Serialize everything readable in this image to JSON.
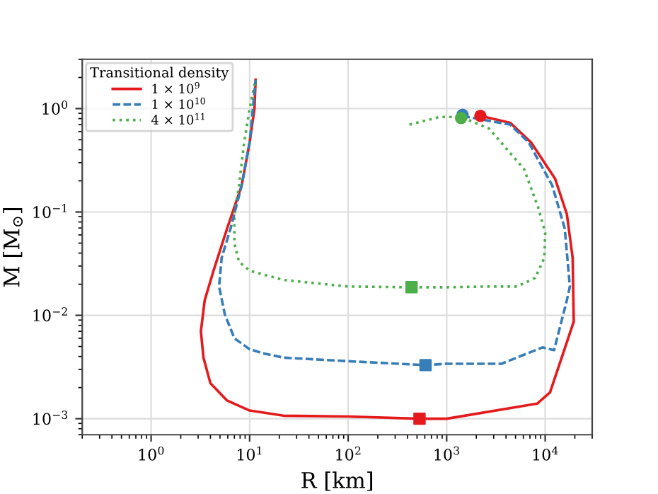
{
  "chart_data": {
    "type": "line",
    "xlabel": "R [km]",
    "ylabel": "M [M$_{⊙}$]",
    "legend_title": "Transitional density",
    "log": "xy",
    "grid": true,
    "legend": "top left",
    "xlim": [
      0.2,
      30000
    ],
    "ylim": [
      0.0007,
      3
    ],
    "xticks": [
      {
        "value": 1,
        "label": "10$^{0}$"
      },
      {
        "value": 10,
        "label": "10$^{1}$"
      },
      {
        "value": 100,
        "label": "10$^{2}$"
      },
      {
        "value": 1000,
        "label": "10$^{3}$"
      },
      {
        "value": 10000,
        "label": "10$^{4}$"
      }
    ],
    "yticks": [
      {
        "value": 0.001,
        "label": "10$^{−3}$"
      },
      {
        "value": 0.01,
        "label": "10$^{−2}$"
      },
      {
        "value": 0.1,
        "label": "10$^{−1}$"
      },
      {
        "value": 1,
        "label": "10$^{0}$"
      }
    ],
    "series": [
      {
        "name": "1 × 10$^{9}$",
        "color": "#e41a1c",
        "line_style": "solid",
        "marker": "none",
        "x": [
          2200,
          4400,
          7200,
          12600,
          16600,
          19000,
          19500,
          11200,
          8300,
          1000,
          530,
          100,
          22,
          10,
          5.9,
          4,
          3.4,
          3.2,
          3.5,
          4.3,
          5.9,
          8.3,
          10,
          11.2,
          11.5
        ],
        "values": [
          0.85,
          0.73,
          0.47,
          0.21,
          0.095,
          0.036,
          0.0087,
          0.0018,
          0.0014,
          0.001,
          0.001,
          0.00105,
          0.00107,
          0.0012,
          0.0015,
          0.0022,
          0.0039,
          0.007,
          0.014,
          0.027,
          0.069,
          0.18,
          0.47,
          1.0,
          1.9
        ]
      },
      {
        "name": "1 × 10$^{10}$",
        "color": "#377eb8",
        "line_style": "dashed",
        "marker": "none",
        "x": [
          1440,
          4400,
          6800,
          11800,
          15800,
          17800,
          16600,
          12300,
          9400,
          3600,
          1000,
          610,
          100,
          22,
          13.6,
          10,
          7,
          5.6,
          4.9,
          5.2,
          6.4,
          8.3,
          10,
          11.5
        ],
        "values": [
          0.85,
          0.7,
          0.47,
          0.18,
          0.069,
          0.019,
          0.014,
          0.0046,
          0.0049,
          0.0034,
          0.0034,
          0.0033,
          0.0036,
          0.0039,
          0.0043,
          0.0047,
          0.006,
          0.0102,
          0.019,
          0.036,
          0.069,
          0.18,
          0.47,
          1.9
        ]
      },
      {
        "name": "4 × 10$^{11}$",
        "color": "#4daf4a",
        "line_style": "dotted",
        "marker": "none",
        "x": [
          420,
          850,
          1400,
          2700,
          6100,
          8500,
          10000,
          9800,
          7900,
          5200,
          2700,
          1000,
          440,
          100,
          22,
          10,
          7.8,
          7.0,
          7.0,
          7.8,
          8.8,
          10,
          11.5
        ],
        "values": [
          0.7,
          0.83,
          0.83,
          0.64,
          0.26,
          0.11,
          0.063,
          0.036,
          0.023,
          0.019,
          0.019,
          0.0187,
          0.0187,
          0.019,
          0.022,
          0.027,
          0.033,
          0.05,
          0.095,
          0.18,
          0.47,
          1.0,
          1.9
        ]
      },
      {
        "type": "scatter",
        "color": "#e41a1c",
        "marker": "circle",
        "x": [
          2200
        ],
        "values": [
          0.85
        ]
      },
      {
        "type": "scatter",
        "color": "#377eb8",
        "marker": "circle",
        "x": [
          1450
        ],
        "values": [
          0.87
        ]
      },
      {
        "type": "scatter",
        "color": "#4daf4a",
        "marker": "circle",
        "x": [
          1400
        ],
        "values": [
          0.81
        ]
      },
      {
        "type": "scatter",
        "color": "#e41a1c",
        "marker": "square",
        "x": [
          530
        ],
        "values": [
          0.001
        ]
      },
      {
        "type": "scatter",
        "color": "#377eb8",
        "marker": "square",
        "x": [
          610
        ],
        "values": [
          0.0033
        ]
      },
      {
        "type": "scatter",
        "color": "#4daf4a",
        "marker": "square",
        "x": [
          440
        ],
        "values": [
          0.0187
        ]
      }
    ]
  }
}
